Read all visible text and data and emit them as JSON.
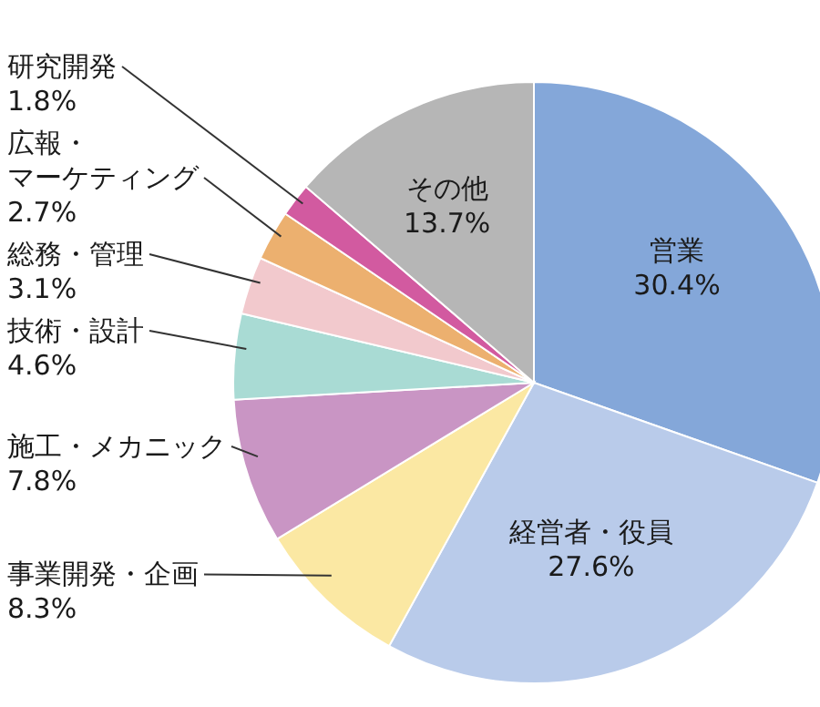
{
  "chart_data": {
    "type": "pie",
    "categories": [
      "営業",
      "経営者・役員",
      "事業開発・企画",
      "施工・メカニック",
      "技術・設計",
      "総務・管理",
      "広報・マーケティング",
      "研究開発",
      "その他"
    ],
    "values": [
      30.4,
      27.6,
      8.3,
      7.8,
      4.6,
      3.1,
      2.7,
      1.8,
      13.7
    ],
    "value_labels": [
      "30.4%",
      "27.6%",
      "8.3%",
      "7.8%",
      "4.6%",
      "3.1%",
      "2.7%",
      "1.8%",
      "13.7%"
    ],
    "colors": [
      "#84a7d9",
      "#b9cbea",
      "#fbe8a3",
      "#c995c4",
      "#a9dbd4",
      "#f2c9cd",
      "#ecb06f",
      "#d25aa0",
      "#b6b6b6"
    ]
  }
}
